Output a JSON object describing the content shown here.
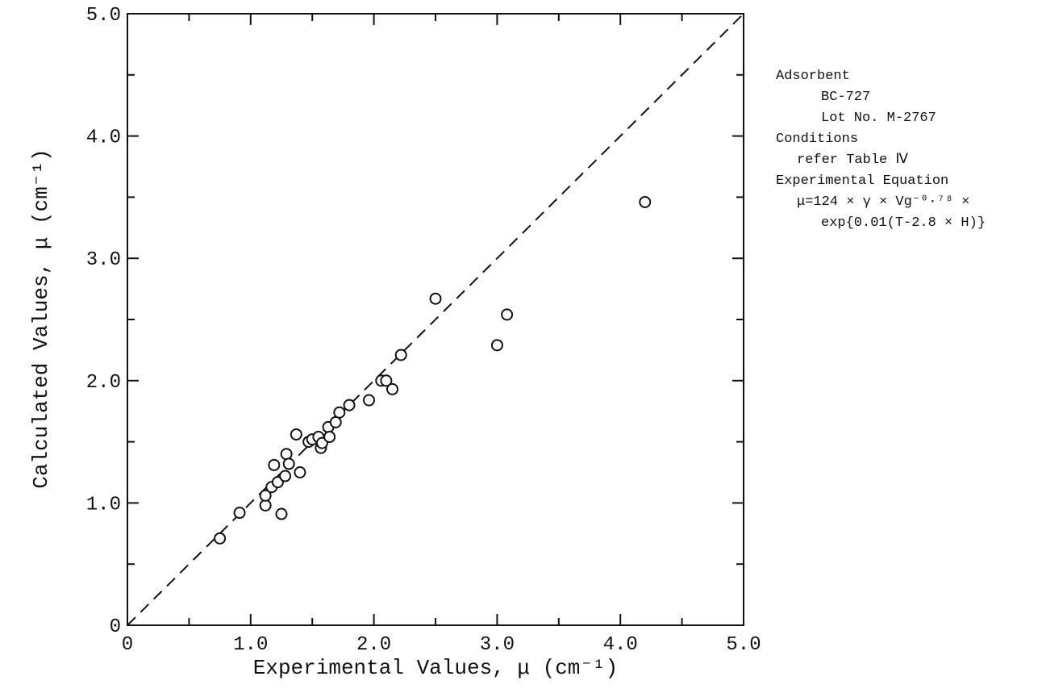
{
  "chart_data": {
    "type": "scatter",
    "xlabel": "Experimental Values, μ (cm⁻¹)",
    "ylabel": "Calculated Values, μ (cm⁻¹)",
    "xlim": [
      0,
      5.0
    ],
    "ylim": [
      0,
      5.0
    ],
    "x_major_ticks": [
      0,
      1.0,
      2.0,
      3.0,
      4.0,
      5.0
    ],
    "y_major_ticks": [
      0,
      1.0,
      2.0,
      3.0,
      4.0,
      5.0
    ],
    "x_tick_labels": [
      "0",
      "1.0",
      "2.0",
      "3.0",
      "4.0",
      "5.0"
    ],
    "y_tick_labels": [
      "0",
      "1.0",
      "2.0",
      "3.0",
      "4.0",
      "5.0"
    ],
    "minor_tick_step": 0.5,
    "grid": false,
    "reference_line": {
      "style": "dashed",
      "from": [
        0,
        0
      ],
      "to": [
        5.0,
        5.0
      ]
    },
    "marker": "open-circle",
    "points": [
      {
        "x": 0.75,
        "y": 0.71
      },
      {
        "x": 0.91,
        "y": 0.92
      },
      {
        "x": 1.12,
        "y": 0.98
      },
      {
        "x": 1.12,
        "y": 1.06
      },
      {
        "x": 1.17,
        "y": 1.13
      },
      {
        "x": 1.19,
        "y": 1.31
      },
      {
        "x": 1.22,
        "y": 1.17
      },
      {
        "x": 1.25,
        "y": 0.91
      },
      {
        "x": 1.28,
        "y": 1.22
      },
      {
        "x": 1.29,
        "y": 1.4
      },
      {
        "x": 1.31,
        "y": 1.32
      },
      {
        "x": 1.37,
        "y": 1.56
      },
      {
        "x": 1.4,
        "y": 1.25
      },
      {
        "x": 1.47,
        "y": 1.5
      },
      {
        "x": 1.5,
        "y": 1.52
      },
      {
        "x": 1.55,
        "y": 1.54
      },
      {
        "x": 1.57,
        "y": 1.45
      },
      {
        "x": 1.58,
        "y": 1.49
      },
      {
        "x": 1.63,
        "y": 1.62
      },
      {
        "x": 1.64,
        "y": 1.54
      },
      {
        "x": 1.69,
        "y": 1.66
      },
      {
        "x": 1.72,
        "y": 1.74
      },
      {
        "x": 1.8,
        "y": 1.8
      },
      {
        "x": 1.96,
        "y": 1.84
      },
      {
        "x": 2.06,
        "y": 2.0
      },
      {
        "x": 2.1,
        "y": 2.0
      },
      {
        "x": 2.15,
        "y": 1.93
      },
      {
        "x": 2.22,
        "y": 2.21
      },
      {
        "x": 2.5,
        "y": 2.67
      },
      {
        "x": 3.0,
        "y": 2.29
      },
      {
        "x": 3.08,
        "y": 2.54
      },
      {
        "x": 4.2,
        "y": 3.46
      }
    ],
    "annotation": {
      "lines": [
        {
          "text": "Adsorbent",
          "indent": 0
        },
        {
          "text": "BC-727",
          "indent": 2
        },
        {
          "text": "Lot No. M-2767",
          "indent": 2
        },
        {
          "text": "Conditions",
          "indent": 0
        },
        {
          "text": "refer Table Ⅳ",
          "indent": 1
        },
        {
          "text": "Experimental Equation",
          "indent": 0
        },
        {
          "text": "μ=124 × γ × Vg⁻⁰·⁷⁸ ×",
          "indent": 1
        },
        {
          "text": "exp{0.01(T-2.8 × H)}",
          "indent": 2
        }
      ]
    }
  }
}
